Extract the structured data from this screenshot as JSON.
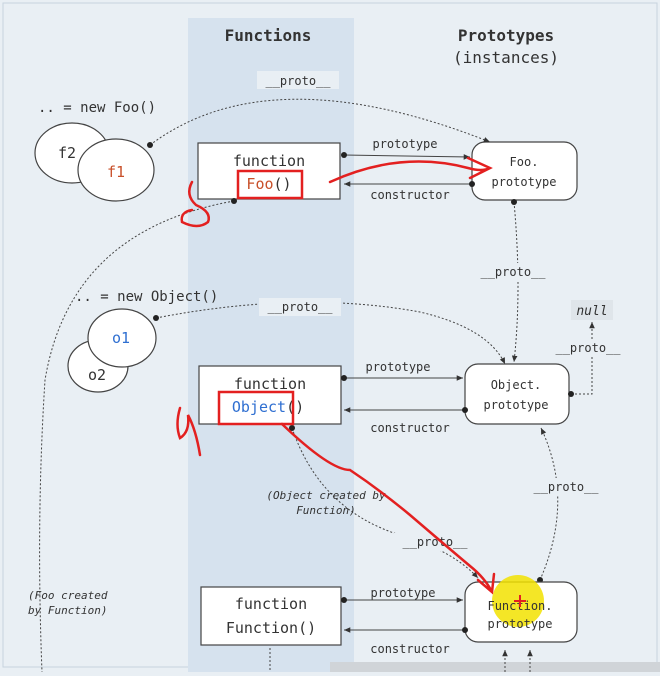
{
  "columns": {
    "functions_title": "Functions",
    "prototypes_title": "Prototypes",
    "prototypes_subtitle": "(instances)"
  },
  "instances": {
    "foo_expr": ".. = new Foo()",
    "f2": "f2",
    "f1": "f1",
    "object_expr": ".. = new Object()",
    "o1": "o1",
    "o2": "o2"
  },
  "functions": {
    "foo": {
      "keyword": "function",
      "name": "Foo",
      "parens": "()"
    },
    "object": {
      "keyword": "function",
      "name": "Object",
      "parens": "()"
    },
    "function": {
      "keyword": "function",
      "name": "Function()"
    }
  },
  "prototypes": {
    "foo_line1": "Foo.",
    "foo_line2": "prototype",
    "object_line1": "Object.",
    "object_line2": "prototype",
    "function_line1": "Function.",
    "function_line2": "prototype",
    "null": "null"
  },
  "edge_labels": {
    "proto": "__proto__",
    "prototype": "prototype",
    "constructor": "constructor"
  },
  "notes": {
    "object_created_line1": "(Object created by",
    "object_created_line2": "Function)",
    "foo_created_line1": "(Foo created",
    "foo_created_line2": "by Function)"
  },
  "colors": {
    "background": "#e9eff4",
    "functions_band": "#d6e2ee",
    "foo_name": "#c8502a",
    "object_name": "#2f6fd1",
    "annotation_red": "#e32020",
    "cursor_highlight": "#f2e200"
  }
}
